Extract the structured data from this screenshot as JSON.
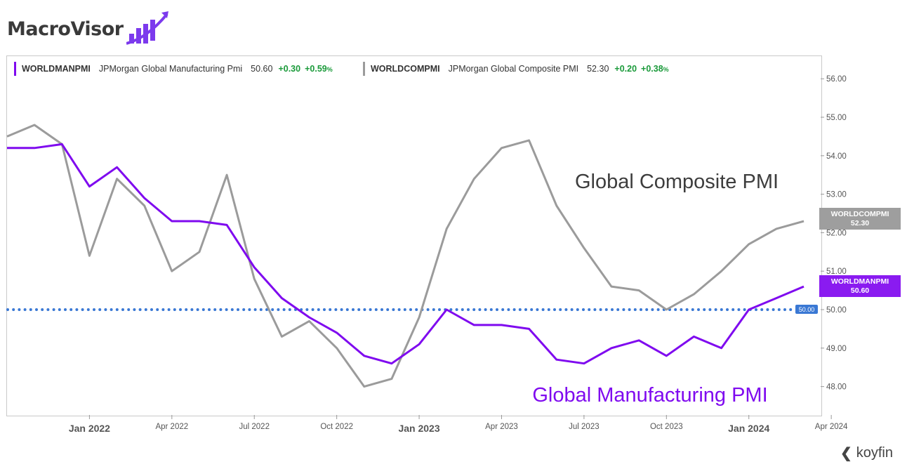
{
  "brand": {
    "name": "MacroVisor",
    "accent": "#7c3aed"
  },
  "legend": [
    {
      "ticker": "WORLDMANPMI",
      "name": "JPMorgan Global Manufacturing Pmi",
      "value": "50.60",
      "change": "+0.30",
      "pct": "+0.59",
      "pct_unit": "%",
      "color": "#7f0aef"
    },
    {
      "ticker": "WORLDCOMPMI",
      "name": "JPMorgan Global Composite PMI",
      "value": "52.30",
      "change": "+0.20",
      "pct": "+0.38",
      "pct_unit": "%",
      "color": "#9b9b9b"
    }
  ],
  "annotations": {
    "composite": "Global Composite PMI",
    "manufacturing": "Global Manufacturing PMI"
  },
  "axis_badges": {
    "composite": {
      "line1": "WORLDCOMPMI",
      "line2": "52.30",
      "color": "#9e9e9e"
    },
    "manufacturing": {
      "line1": "WORLDMANPMI",
      "line2": "50.60",
      "color": "#8a1bf0"
    },
    "reference": {
      "label": "50.00",
      "color": "#3a78d4"
    }
  },
  "footer": {
    "logo": "koyfin"
  },
  "chart_data": {
    "type": "line",
    "x_ticks": [
      "Jan 2022",
      "Apr 2022",
      "Jul 2022",
      "Oct 2022",
      "Jan 2023",
      "Apr 2023",
      "Jul 2023",
      "Oct 2023",
      "Jan 2024",
      "Apr 2024"
    ],
    "y_ticks": [
      "48.00",
      "49.00",
      "50.00",
      "51.00",
      "52.00",
      "53.00",
      "54.00",
      "55.00",
      "56.00"
    ],
    "ylim": [
      47.6,
      56.4
    ],
    "x": [
      "2021-10",
      "2021-11",
      "2021-12",
      "2022-01",
      "2022-02",
      "2022-03",
      "2022-04",
      "2022-05",
      "2022-06",
      "2022-07",
      "2022-08",
      "2022-09",
      "2022-10",
      "2022-11",
      "2022-12",
      "2023-01",
      "2023-02",
      "2023-03",
      "2023-04",
      "2023-05",
      "2023-06",
      "2023-07",
      "2023-08",
      "2023-09",
      "2023-10",
      "2023-11",
      "2023-12",
      "2024-01",
      "2024-02",
      "2024-03"
    ],
    "series": [
      {
        "name": "WORLDCOMPMI",
        "color": "#9b9b9b",
        "values": [
          54.5,
          54.8,
          54.3,
          51.4,
          53.4,
          52.7,
          51.0,
          51.5,
          53.5,
          50.8,
          49.3,
          49.7,
          49.0,
          48.0,
          48.2,
          49.8,
          52.1,
          53.4,
          54.2,
          54.4,
          52.7,
          51.6,
          50.6,
          50.5,
          50.0,
          50.4,
          51.0,
          51.7,
          52.1,
          52.3
        ]
      },
      {
        "name": "WORLDMANPMI",
        "color": "#7f0aef",
        "values": [
          54.2,
          54.2,
          54.3,
          53.2,
          53.7,
          52.9,
          52.3,
          52.3,
          52.2,
          51.1,
          50.3,
          49.8,
          49.4,
          48.8,
          48.6,
          49.1,
          50.0,
          49.6,
          49.6,
          49.5,
          48.7,
          48.6,
          49.0,
          49.2,
          48.8,
          49.3,
          49.0,
          50.0,
          50.3,
          50.6
        ]
      }
    ],
    "reference_line": {
      "y": 50.0,
      "style": "dotted",
      "color": "#3a78d4"
    },
    "legend_position": "top-left",
    "grid": false
  }
}
